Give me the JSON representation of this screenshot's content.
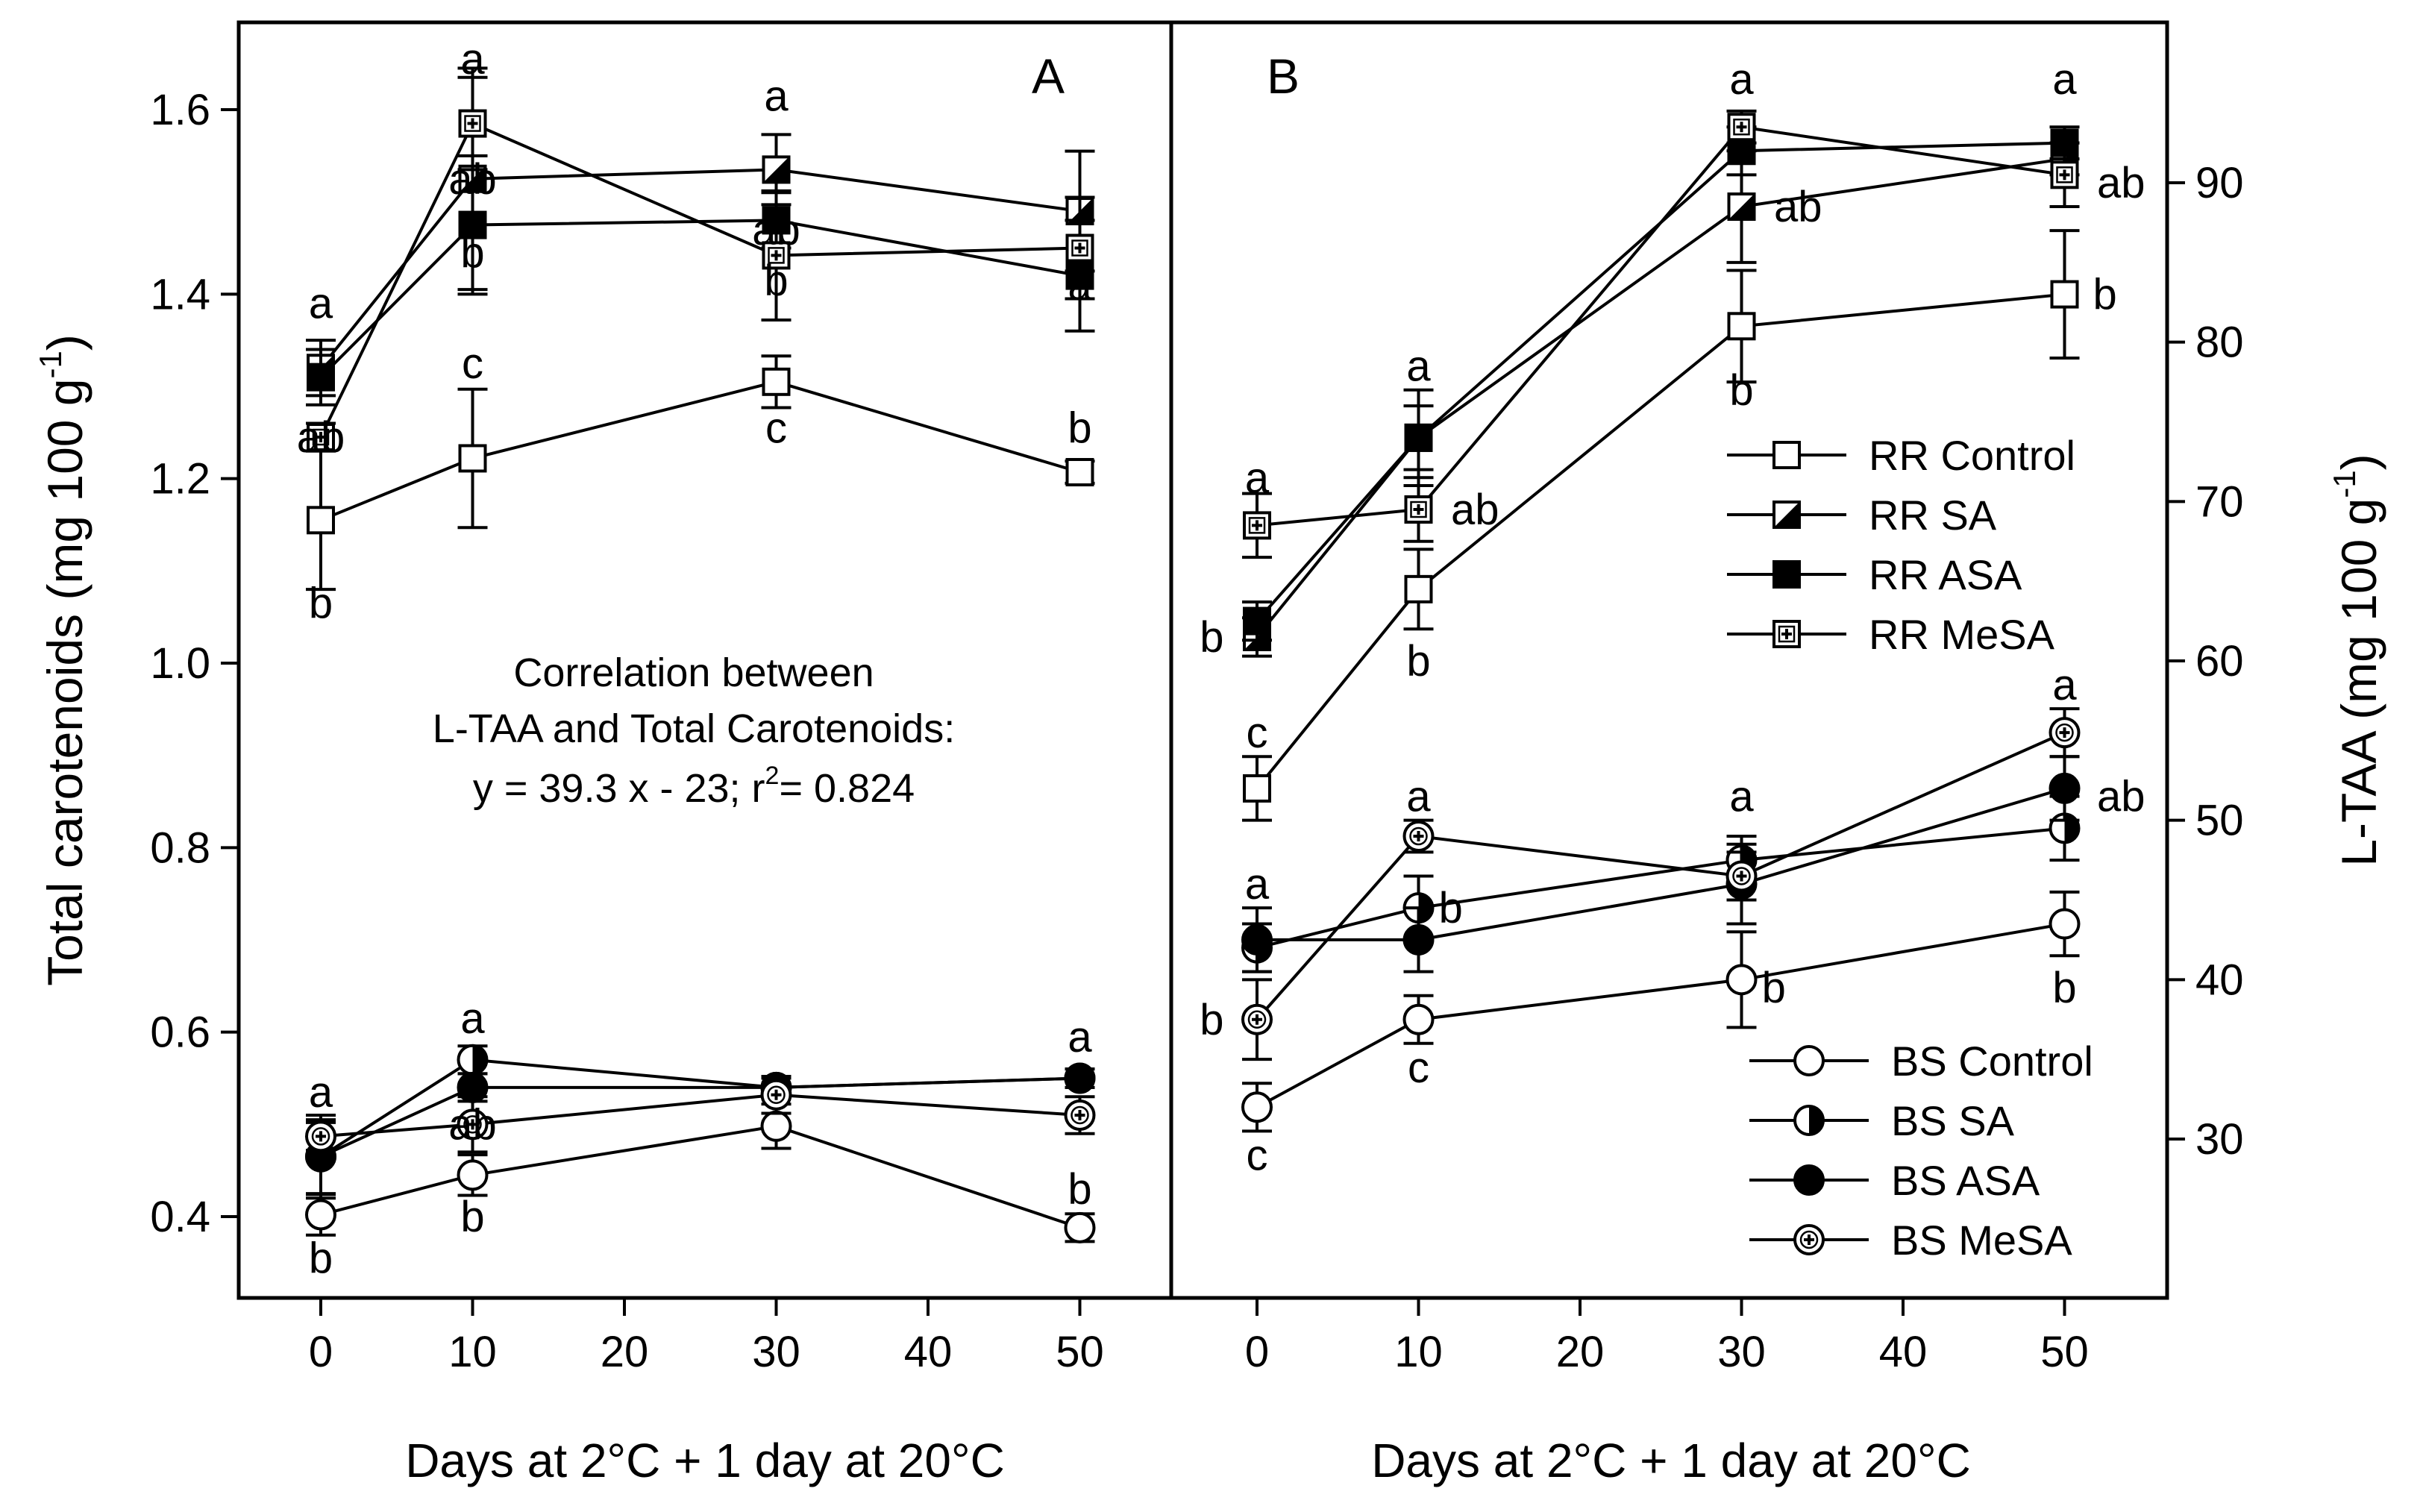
{
  "chart_data": [
    {
      "panel": "A",
      "type": "line",
      "xlabel": "Days at 2°C + 1 day at 20°C",
      "ylabel": "Total carotenoids (mg 100 g-1)",
      "xlim": [
        -5,
        55
      ],
      "ylim": [
        0.3,
        1.7
      ],
      "x_ticks": [
        0,
        10,
        20,
        30,
        40,
        50
      ],
      "y_ticks": [
        0.4,
        0.6,
        0.8,
        1.0,
        1.2,
        1.4,
        1.6
      ],
      "y_tick_labels": [
        "0.4",
        "0.6",
        "0.8",
        "1.0",
        "1.2",
        "1.4",
        "1.6"
      ],
      "annotation": {
        "line1": "Correlation between",
        "line2": "L-TAA and Total Carotenoids:",
        "line3_pre": "y = 39.3 x - 23; r",
        "line3_sup": "2",
        "line3_post": "= 0.824"
      },
      "x": [
        0,
        10,
        30,
        50
      ],
      "series": [
        {
          "name": "RR Control",
          "marker": "square-open",
          "values": [
            1.155,
            1.222,
            1.305,
            1.207
          ],
          "errors": [
            0.075,
            0.075,
            0.028,
            0.012
          ]
        },
        {
          "name": "RR SA",
          "marker": "square-half",
          "values": [
            1.32,
            1.525,
            1.535,
            1.49
          ],
          "errors": [
            0.03,
            0.12,
            0.038,
            0.065
          ]
        },
        {
          "name": "RR ASA",
          "marker": "square-filled",
          "values": [
            1.31,
            1.475,
            1.48,
            1.42
          ],
          "errors": [
            0.03,
            0.075,
            0.03,
            0.06
          ]
        },
        {
          "name": "RR MeSA",
          "marker": "square-plus",
          "values": [
            1.245,
            1.585,
            1.442,
            1.45
          ],
          "errors": [
            0.015,
            0.05,
            0.07,
            0.055
          ]
        },
        {
          "name": "BS Control",
          "marker": "circle-open",
          "values": [
            0.402,
            0.445,
            0.498,
            0.388
          ],
          "errors": [
            0.022,
            0.022,
            0.024,
            0.015
          ]
        },
        {
          "name": "BS SA",
          "marker": "circle-half",
          "values": [
            0.465,
            0.57,
            0.54,
            0.55
          ],
          "errors": [
            0.045,
            0.015,
            0.01,
            0.01
          ]
        },
        {
          "name": "BS ASA",
          "marker": "circle-filled",
          "values": [
            0.465,
            0.54,
            0.54,
            0.55
          ],
          "errors": [
            0.04,
            0.015,
            0.01,
            0.01
          ]
        },
        {
          "name": "BS MeSA",
          "marker": "circle-plus",
          "values": [
            0.487,
            0.5,
            0.532,
            0.51
          ],
          "errors": [
            0.015,
            0.03,
            0.02,
            0.02
          ]
        }
      ],
      "letters": [
        {
          "text": "a",
          "x": 0,
          "y": 1.39
        },
        {
          "text": "ab",
          "x": 0,
          "y": 1.245
        },
        {
          "text": "b",
          "x": 0,
          "y": 1.065
        },
        {
          "text": "ab",
          "x": 10,
          "y": 1.525
        },
        {
          "text": "a",
          "x": 10,
          "y": 1.655
        },
        {
          "text": "b",
          "x": 10,
          "y": 1.445
        },
        {
          "text": "c",
          "x": 10,
          "y": 1.325
        },
        {
          "text": "a",
          "x": 30,
          "y": 1.615
        },
        {
          "text": "ab",
          "x": 30,
          "y": 1.47
        },
        {
          "text": "b",
          "x": 30,
          "y": 1.415
        },
        {
          "text": "c",
          "x": 30,
          "y": 1.255
        },
        {
          "text": "a",
          "x": 50,
          "y": 1.41
        },
        {
          "text": "b",
          "x": 50,
          "y": 1.255
        },
        {
          "text": "a",
          "x": 0,
          "y": 0.535
        },
        {
          "text": "b",
          "x": 0,
          "y": 0.355
        },
        {
          "text": "a",
          "x": 10,
          "y": 0.615
        },
        {
          "text": "ab",
          "x": 10,
          "y": 0.5
        },
        {
          "text": "b",
          "x": 10,
          "y": 0.4
        },
        {
          "text": "a",
          "x": 50,
          "y": 0.595
        },
        {
          "text": "b",
          "x": 50,
          "y": 0.43
        }
      ]
    },
    {
      "panel": "B",
      "type": "line",
      "xlabel": "Days at 2°C + 1 day at 20°C",
      "ylabel": "L-TAA (mg 100 g-1)",
      "xlim": [
        -5,
        55
      ],
      "ylim": [
        20,
        98
      ],
      "x_ticks": [
        0,
        10,
        20,
        30,
        40,
        50
      ],
      "y_ticks": [
        30,
        40,
        50,
        60,
        70,
        80,
        90
      ],
      "x": [
        0,
        10,
        30,
        50
      ],
      "series": [
        {
          "name": "RR Control",
          "marker": "square-open",
          "values": [
            52,
            64.5,
            81,
            83
          ],
          "errors": [
            2,
            2.5,
            3.5,
            4
          ]
        },
        {
          "name": "RR SA",
          "marker": "square-half",
          "values": [
            61.5,
            74,
            88.5,
            91.5
          ],
          "errors": [
            1.2,
            3,
            3.5,
            1
          ]
        },
        {
          "name": "RR ASA",
          "marker": "square-filled",
          "values": [
            62.5,
            74,
            92,
            92.5
          ],
          "errors": [
            1.2,
            2,
            1.5,
            1
          ]
        },
        {
          "name": "RR MeSA",
          "marker": "square-plus",
          "values": [
            68.5,
            69.5,
            93.5,
            90.5
          ],
          "errors": [
            2,
            2,
            1,
            2
          ]
        },
        {
          "name": "BS Control",
          "marker": "circle-open",
          "values": [
            32,
            37.5,
            40,
            43.5
          ],
          "errors": [
            1.5,
            1.5,
            3,
            2
          ]
        },
        {
          "name": "BS SA",
          "marker": "circle-half",
          "values": [
            42,
            44.5,
            47.5,
            49.5
          ],
          "errors": [
            1.5,
            2,
            1.5,
            2
          ]
        },
        {
          "name": "BS ASA",
          "marker": "circle-filled",
          "values": [
            42.5,
            42.5,
            46,
            52
          ],
          "errors": [
            2,
            2,
            2.5,
            2
          ]
        },
        {
          "name": "BS MeSA",
          "marker": "circle-plus",
          "values": [
            37.5,
            49,
            46.5,
            55.5
          ],
          "errors": [
            2.5,
            1,
            1.5,
            1.5
          ]
        }
      ],
      "letters": [
        {
          "text": "a",
          "x": 0,
          "y": 71.5
        },
        {
          "text": "b",
          "x": -2.8,
          "y": 61.5
        },
        {
          "text": "c",
          "x": 0,
          "y": 55.5
        },
        {
          "text": "a",
          "x": 10,
          "y": 78.5
        },
        {
          "text": "ab",
          "x": 13.5,
          "y": 69.5
        },
        {
          "text": "b",
          "x": 10,
          "y": 60
        },
        {
          "text": "a",
          "x": 30,
          "y": 96.5
        },
        {
          "text": "ab",
          "x": 33.5,
          "y": 88.5
        },
        {
          "text": "b",
          "x": 30,
          "y": 77
        },
        {
          "text": "a",
          "x": 50,
          "y": 96.5
        },
        {
          "text": "ab",
          "x": 53.5,
          "y": 90
        },
        {
          "text": "b",
          "x": 52.5,
          "y": 83
        },
        {
          "text": "a",
          "x": 0,
          "y": 46
        },
        {
          "text": "b",
          "x": -2.8,
          "y": 37.5
        },
        {
          "text": "c",
          "x": 0,
          "y": 29
        },
        {
          "text": "a",
          "x": 10,
          "y": 51.5
        },
        {
          "text": "b",
          "x": 12,
          "y": 44.5
        },
        {
          "text": "c",
          "x": 10,
          "y": 34.5
        },
        {
          "text": "a",
          "x": 30,
          "y": 51.5
        },
        {
          "text": "b",
          "x": 32,
          "y": 39.5
        },
        {
          "text": "a",
          "x": 50,
          "y": 58.5
        },
        {
          "text": "ab",
          "x": 53.5,
          "y": 51.5
        },
        {
          "text": "b",
          "x": 50,
          "y": 39.5
        }
      ]
    }
  ],
  "legend_top": [
    "RR Control",
    "RR SA",
    "RR ASA",
    "RR MeSA"
  ],
  "legend_bottom": [
    "BS Control",
    "BS SA",
    "BS ASA",
    "BS MeSA"
  ],
  "panel_labels": [
    "A",
    "B"
  ],
  "y_label_left": {
    "main": "Total carotenoids (mg 100 g",
    "sup": "-1",
    "close": ")"
  },
  "y_label_right": {
    "main": "L-TAA (mg 100 g",
    "sup": "-1",
    "close": ")"
  },
  "x_labels": [
    "Days at 2°C + 1 day at 20°C",
    "Days at 2°C + 1 day at 20°C"
  ],
  "colors": {
    "axis": "#000000",
    "fill": "#000000",
    "open": "#ffffff"
  }
}
